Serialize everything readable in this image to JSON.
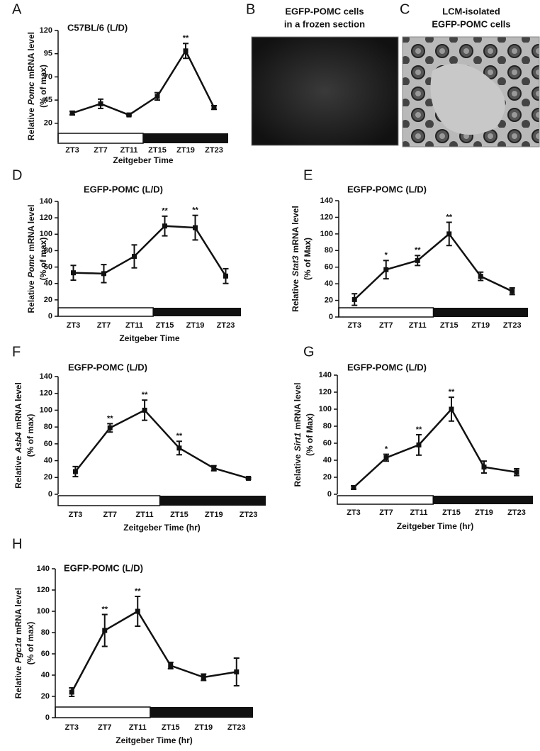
{
  "chart_data": [
    {
      "type": "line",
      "label": "A",
      "title": "C57BL/6 (L/D)",
      "ylabel": [
        "Relative",
        "Pomc",
        "mRNA level"
      ],
      "ylabel2": "(% of max)",
      "xlabel": "Zeitgeber Time",
      "categories": [
        "ZT3",
        "ZT7",
        "ZT11",
        "ZT15",
        "ZT19",
        "ZT23"
      ],
      "values": [
        31,
        41,
        29,
        49,
        98,
        37
      ],
      "errors": [
        2,
        5,
        1,
        4,
        8,
        2
      ],
      "annotations": [
        null,
        null,
        null,
        null,
        "**",
        null
      ],
      "color": "#111111",
      "ylim": [
        0,
        120
      ],
      "yticks": [
        20,
        45,
        70,
        95,
        120
      ]
    },
    {
      "type": "line",
      "label": "D",
      "title": "EGFP-POMC (L/D)",
      "ylabel": [
        "Relative",
        "Pomc",
        "mRNA level"
      ],
      "ylabel2": "(% of max)",
      "xlabel": "Zeitgeber Time",
      "categories": [
        "ZT3",
        "ZT7",
        "ZT11",
        "ZT15",
        "ZT19",
        "ZT23"
      ],
      "values": [
        53,
        52,
        73,
        110,
        108,
        49
      ],
      "errors": [
        9,
        11,
        14,
        12,
        15,
        9
      ],
      "annotations": [
        null,
        null,
        null,
        "**",
        "**",
        null
      ],
      "color": "#111111",
      "ylim": [
        0,
        140
      ],
      "yticks": [
        0,
        20,
        40,
        60,
        80,
        100,
        120,
        140
      ]
    },
    {
      "type": "line",
      "label": "E",
      "title": "EGFP-POMC (L/D)",
      "ylabel": [
        "Relative",
        "Stat3",
        "mRNA level"
      ],
      "ylabel2": "(% of Max)",
      "categories": [
        "ZT3",
        "ZT7",
        "ZT11",
        "ZT15",
        "ZT19",
        "ZT23"
      ],
      "values": [
        21,
        57,
        68,
        100,
        49,
        31
      ],
      "errors": [
        7,
        11,
        6,
        14,
        5,
        4
      ],
      "annotations": [
        null,
        "*",
        "**",
        "**",
        null,
        null
      ],
      "color": "#111111",
      "ylim": [
        0,
        140
      ],
      "yticks": [
        0,
        20,
        40,
        60,
        80,
        100,
        120,
        140
      ]
    },
    {
      "type": "line",
      "label": "F",
      "title": "EGFP-POMC (L/D)",
      "ylabel": [
        "Relative",
        "Asb4",
        "mRNA level"
      ],
      "ylabel2": "(% of max)",
      "xlabel": "Zeitgeber Time (hr)",
      "categories": [
        "ZT3",
        "ZT7",
        "ZT11",
        "ZT15",
        "ZT19",
        "ZT23"
      ],
      "values": [
        27,
        79,
        100,
        55,
        31,
        19
      ],
      "errors": [
        6,
        5,
        12,
        8,
        3,
        1
      ],
      "annotations": [
        null,
        "**",
        "**",
        "**",
        null,
        null
      ],
      "color": "#111111",
      "ylim": [
        0,
        140
      ],
      "yticks": [
        0,
        20,
        40,
        60,
        80,
        100,
        120,
        140
      ]
    },
    {
      "type": "line",
      "label": "G",
      "title": "EGFP-POMC (L/D)",
      "ylabel": [
        "Relative",
        "Sirt1",
        "mRNA level"
      ],
      "ylabel2": "(% of Max)",
      "xlabel": "Zeitgeber Time (hr)",
      "categories": [
        "ZT3",
        "ZT7",
        "ZT11",
        "ZT15",
        "ZT19",
        "ZT23"
      ],
      "values": [
        8,
        43,
        58,
        100,
        32,
        26
      ],
      "errors": [
        2,
        4,
        12,
        14,
        7,
        4
      ],
      "annotations": [
        null,
        "*",
        "**",
        "**",
        null,
        null
      ],
      "color": "#111111",
      "ylim": [
        0,
        140
      ],
      "yticks": [
        0,
        20,
        40,
        60,
        80,
        100,
        120,
        140
      ]
    },
    {
      "type": "line",
      "label": "H",
      "title": "EGFP-POMC (L/D)",
      "ylabel": [
        "Relative",
        "Pgc1α",
        "mRNA level"
      ],
      "ylabel2": "(% of max)",
      "xlabel": "Zeitgeber Time (hr)",
      "categories": [
        "ZT3",
        "ZT7",
        "ZT11",
        "ZT15",
        "ZT19",
        "ZT23"
      ],
      "values": [
        24,
        82,
        100,
        49,
        38,
        43
      ],
      "errors": [
        4,
        15,
        14,
        3,
        3,
        13
      ],
      "annotations": [
        null,
        "**",
        "**",
        null,
        null,
        null
      ],
      "color": "#111111",
      "ylim": [
        0,
        140
      ],
      "yticks": [
        0,
        20,
        40,
        60,
        80,
        100,
        120,
        140
      ]
    }
  ],
  "images": [
    {
      "label": "B",
      "title": [
        "EGFP-POMC cells",
        "in a frozen section"
      ]
    },
    {
      "label": "C",
      "title": [
        "LCM-isolated",
        "EGFP-POMC cells"
      ]
    }
  ]
}
